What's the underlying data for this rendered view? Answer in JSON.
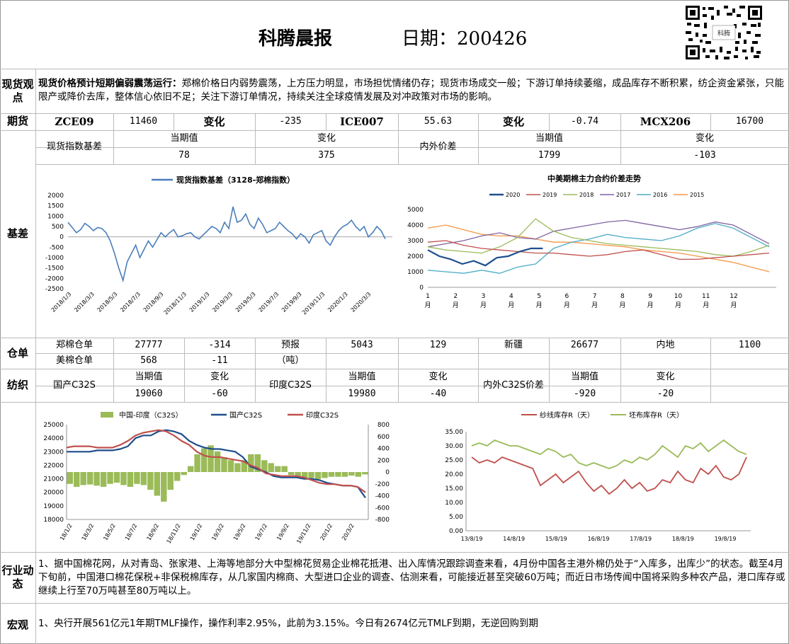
{
  "header": {
    "title": "科腾晨报",
    "date_label": "日期：200426",
    "qr_text": "科腾"
  },
  "spot_view": {
    "label": "现货观点",
    "headline": "现货价格预计短期偏弱震荡运行：",
    "text": "郑棉价格日内弱势震荡，上方压力明显，市场担忧情绪仍存；现货市场成交一般；下游订单持续萎缩，成品库存不断积累，纺企资金紧张，只能限产或降价去库，整体信心依旧不足；关注下游订单情况，持续关注全球疫情发展及对冲政策对市场的影响。"
  },
  "futures": {
    "label": "期货",
    "cells": [
      "ZCE09",
      "11460",
      "变化",
      "-235",
      "ICE007",
      "55.63",
      "变化",
      "-0.74",
      "MCX206",
      "16700"
    ]
  },
  "basis": {
    "label": "基差",
    "index_label": "现货指数基差",
    "cur_label": "当期值",
    "chg_label": "变化",
    "cur_value": "78",
    "chg_value": "375",
    "spread_label": "内外价差",
    "spread_cur_label": "当期值",
    "spread_chg_label": "变化",
    "spread_cur_value": "1799",
    "spread_chg_value": "-103"
  },
  "chart_data": [
    {
      "type": "line",
      "title": "",
      "series": [
        {
          "name": "现货指数基差（3128-郑棉指数）",
          "color": "#4a7ebb"
        }
      ],
      "x_ticks": [
        "2018/1/3",
        "2018/3/3",
        "2018/5/3",
        "2018/7/3",
        "2018/9/3",
        "2018/11/3",
        "2019/1/3",
        "2019/3/3",
        "2019/5/3",
        "2019/7/3",
        "2019/9/3",
        "2019/11/3",
        "2020/1/3",
        "2020/3/3"
      ],
      "ylim": [
        -2500,
        2000
      ],
      "y_ticks": [
        2000,
        1500,
        1000,
        500,
        0,
        -500,
        -1000,
        -1500,
        -2000,
        -2500
      ],
      "values": [
        700,
        450,
        200,
        350,
        650,
        500,
        300,
        450,
        400,
        200,
        -200,
        -800,
        -1500,
        -2100,
        -1200,
        -800,
        -400,
        -1000,
        -600,
        -200,
        -500,
        -150,
        200,
        0,
        200,
        350,
        0,
        50,
        150,
        200,
        0,
        -100,
        100,
        300,
        500,
        400,
        200,
        700,
        400,
        1450,
        700,
        800,
        1100,
        600,
        400,
        900,
        600,
        200,
        300,
        400,
        700,
        500,
        300,
        150,
        -100,
        150,
        0,
        -300,
        100,
        200,
        300,
        -200,
        -400,
        0,
        300,
        500,
        600,
        800,
        500,
        300,
        500,
        0,
        200,
        500,
        300,
        -100
      ]
    },
    {
      "type": "line",
      "title": "中美期棉主力合约价差走势",
      "ylim": [
        0,
        5000
      ],
      "y_ticks": [
        5000,
        4000,
        3000,
        2000,
        1000,
        0
      ],
      "x_ticks": [
        "1月",
        "2月",
        "3月",
        "4月",
        "5月",
        "6月",
        "7月",
        "8月",
        "9月",
        "10月",
        "11月",
        "12月"
      ],
      "series": [
        {
          "name": "2020",
          "color": "#1f4e8c",
          "values": [
            2400,
            2000,
            1800,
            1500,
            1700,
            1400,
            1900,
            2000,
            2300,
            2500,
            2500
          ]
        },
        {
          "name": "2019",
          "color": "#c0504d",
          "values": [
            2900,
            3000,
            2700,
            2500,
            2400,
            2300,
            2200,
            2200,
            2100,
            2000,
            2100,
            2300,
            2400,
            2100,
            1800,
            1800,
            1900,
            2000,
            2100,
            2200
          ]
        },
        {
          "name": "2018",
          "color": "#9bbb59",
          "values": [
            2600,
            2400,
            2300,
            2200,
            2600,
            3200,
            4400,
            3600,
            3200,
            3000,
            2800,
            2700,
            2600,
            2500,
            2400,
            2300,
            2100,
            2000,
            2300,
            2700
          ]
        },
        {
          "name": "2017",
          "color": "#8064a2",
          "values": [
            2600,
            2800,
            3000,
            3300,
            3500,
            3200,
            3100,
            3600,
            3800,
            4000,
            4200,
            4300,
            4100,
            3900,
            3700,
            3900,
            4200,
            4000,
            3400,
            2800
          ]
        },
        {
          "name": "2016",
          "color": "#4bacc6",
          "values": [
            1100,
            1000,
            900,
            1100,
            900,
            1300,
            1500,
            2500,
            2900,
            3100,
            3400,
            3200,
            3100,
            3000,
            3300,
            3800,
            4100,
            3800,
            3200,
            2600
          ]
        },
        {
          "name": "2015",
          "color": "#f79646",
          "values": [
            3800,
            4000,
            3700,
            3400,
            3300,
            3300,
            3100,
            2900,
            2900,
            2800,
            2700,
            2600,
            2400,
            2300,
            2200,
            2000,
            1800,
            1600,
            1300,
            1000
          ]
        }
      ]
    },
    {
      "type": "line",
      "title": "",
      "x_ticks": [
        "18/1/2",
        "18/3/2",
        "18/5/2",
        "18/7/2",
        "18/9/2",
        "18/11/2",
        "19/1/2",
        "19/3/2",
        "19/5/2",
        "19/7/2",
        "19/9/2",
        "19/11/2",
        "20/1/2",
        "20/3/2"
      ],
      "ylim": [
        18000,
        25000
      ],
      "y_ticks": [
        25000,
        24000,
        23000,
        22000,
        21000,
        20000,
        19000,
        18000
      ],
      "y2lim": [
        -800,
        800
      ],
      "y2_ticks": [
        800,
        600,
        400,
        200,
        0,
        -200,
        -400,
        -600,
        -800
      ],
      "series": [
        {
          "name": "中国-印度（C32S）",
          "color": "#9bbb59",
          "type": "bar",
          "axis": "right",
          "values": [
            -200,
            -250,
            -220,
            -210,
            -230,
            -250,
            -200,
            -180,
            -220,
            -250,
            -200,
            -220,
            -300,
            -400,
            -500,
            -300,
            -150,
            -50,
            100,
            300,
            400,
            450,
            350,
            250,
            200,
            150,
            200,
            300,
            300,
            200,
            150,
            100,
            100,
            -50,
            -80,
            -100,
            -100,
            -120,
            -100,
            -80,
            -80,
            -80,
            -60,
            -80,
            -40
          ]
        },
        {
          "name": "国产C32S",
          "color": "#1f4e8c",
          "axis": "left",
          "values": [
            23000,
            23000,
            23000,
            23000,
            23100,
            23100,
            23100,
            23200,
            23400,
            24000,
            24200,
            24200,
            24500,
            24600,
            24500,
            24300,
            23800,
            23500,
            23300,
            23200,
            23200,
            23100,
            23000,
            22600,
            21900,
            21700,
            21500,
            21200,
            21100,
            21100,
            21100,
            21000,
            21000,
            20900,
            20700,
            20600,
            20500,
            20500,
            20400,
            19600
          ]
        },
        {
          "name": "印度C32S",
          "color": "#c0504d",
          "axis": "left",
          "values": [
            23300,
            23400,
            23400,
            23400,
            23300,
            23300,
            23300,
            23500,
            23800,
            24200,
            24400,
            24500,
            24600,
            24500,
            24200,
            23800,
            23500,
            23000,
            22700,
            22600,
            22600,
            22500,
            22400,
            22300,
            22000,
            21800,
            21400,
            21300,
            21200,
            21200,
            21200,
            21100,
            20900,
            20700,
            20600,
            20600,
            20500,
            20500,
            20400,
            20000
          ]
        }
      ]
    },
    {
      "type": "line",
      "title": "",
      "x_ticks": [
        "13/8/19",
        "14/8/19",
        "15/8/19",
        "16/8/19",
        "17/8/19",
        "18/8/19",
        "19/8/19"
      ],
      "ylim": [
        0,
        35
      ],
      "y_ticks": [
        "35.00",
        "30.00",
        "25.00",
        "20.00",
        "15.00",
        "10.00",
        "5.00",
        "0.00"
      ],
      "series": [
        {
          "name": "纱线库存R（天）",
          "color": "#c0504d",
          "values": [
            26,
            24,
            25,
            24,
            26,
            25,
            24,
            23,
            22,
            16,
            18,
            20,
            17,
            19,
            21,
            17,
            14,
            16,
            13,
            15,
            18,
            15,
            17,
            14,
            15,
            18,
            17,
            21,
            18,
            17,
            22,
            20,
            23,
            19,
            18,
            20,
            26
          ]
        },
        {
          "name": "坯布库存R（天）",
          "color": "#9bbb59",
          "values": [
            30,
            31,
            30,
            32,
            31,
            30,
            30,
            29,
            28,
            27,
            29,
            28,
            26,
            27,
            24,
            23,
            24,
            23,
            22,
            23,
            25,
            24,
            26,
            25,
            27,
            30,
            28,
            26,
            30,
            29,
            31,
            28,
            30,
            32,
            30,
            28,
            27
          ]
        }
      ]
    }
  ],
  "warehouse": {
    "label": "仓单",
    "row1": [
      "郑棉仓单",
      "27777",
      "-314",
      "预报",
      "5043",
      "129",
      "新疆",
      "26677",
      "内地",
      "1100"
    ],
    "row2": [
      "美棉仓单",
      "568",
      "-11",
      "（吨）"
    ]
  },
  "textile": {
    "label": "纺织",
    "domestic": "国产C32S",
    "india": "印度C32S",
    "spread": "内外C32S价差",
    "cur_label": "当期值",
    "chg_label": "变化",
    "domestic_cur": "19060",
    "domestic_chg": "-60",
    "india_cur": "19980",
    "india_chg": "-40",
    "spread_cur": "-920",
    "spread_chg": "-20"
  },
  "industry": {
    "label": "行业动态",
    "text": "1、据中国棉花网，从对青岛、张家港、上海等地部分大中型棉花贸易企业棉花抵港、出入库情况跟踪调查来看，4月份中国各主港外棉仍处于“入库多，出库少”的状态。截至4月下旬前，中国港口棉花保税+非保税棉库存，从几家国内棉商、大型进口企业的调查、估测来看，可能接近甚至突破60万吨；而近日市场传闻中国将采购多种农产品，港口库存或继续上行至70万吨甚至80万吨以上。"
  },
  "macro": {
    "label": "宏观",
    "text": "1、央行开展561亿元1年期TMLF操作，操作利率2.95%，此前为3.15%。今日有2674亿元TMLF到期，无逆回购到期"
  }
}
